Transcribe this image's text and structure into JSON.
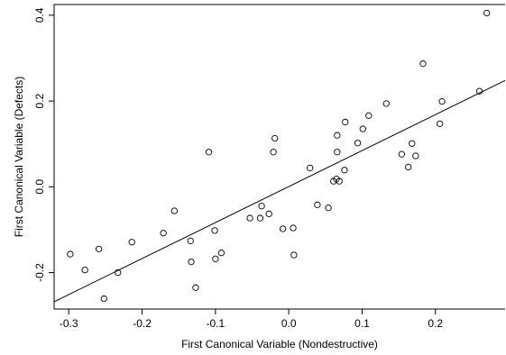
{
  "chart_data": {
    "type": "scatter",
    "title": "",
    "xlabel": "First Canonical Variable (Nondestructive)",
    "ylabel": "First Canonical Variable (Defects)",
    "xlim": [
      -0.32,
      0.295
    ],
    "ylim": [
      -0.285,
      0.425
    ],
    "xticks": [
      -0.3,
      -0.2,
      -0.1,
      0.0,
      0.1,
      0.2
    ],
    "xtick_labels": [
      "-0.3",
      "-0.2",
      "-0.1",
      "0.0",
      "0.1",
      "0.2"
    ],
    "yticks": [
      -0.2,
      0.0,
      0.2,
      0.4
    ],
    "ytick_labels": [
      "-0.2",
      "0.0",
      "0.2",
      "0.4"
    ],
    "grid": false,
    "fit_line": {
      "x": [
        -0.32,
        0.295
      ],
      "y": [
        -0.268,
        0.248
      ]
    },
    "points": [
      {
        "x": -0.298,
        "y": -0.157
      },
      {
        "x": -0.278,
        "y": -0.194
      },
      {
        "x": -0.259,
        "y": -0.145
      },
      {
        "x": -0.252,
        "y": -0.261
      },
      {
        "x": -0.233,
        "y": -0.2
      },
      {
        "x": -0.214,
        "y": -0.129
      },
      {
        "x": -0.171,
        "y": -0.108
      },
      {
        "x": -0.156,
        "y": -0.056
      },
      {
        "x": -0.134,
        "y": -0.126
      },
      {
        "x": -0.133,
        "y": -0.175
      },
      {
        "x": -0.127,
        "y": -0.235
      },
      {
        "x": -0.109,
        "y": 0.081
      },
      {
        "x": -0.101,
        "y": -0.102
      },
      {
        "x": -0.1,
        "y": -0.168
      },
      {
        "x": -0.092,
        "y": -0.154
      },
      {
        "x": -0.053,
        "y": -0.073
      },
      {
        "x": -0.039,
        "y": -0.073
      },
      {
        "x": -0.037,
        "y": -0.045
      },
      {
        "x": -0.027,
        "y": -0.063
      },
      {
        "x": -0.021,
        "y": 0.081
      },
      {
        "x": -0.019,
        "y": 0.113
      },
      {
        "x": -0.008,
        "y": -0.098
      },
      {
        "x": 0.006,
        "y": -0.096
      },
      {
        "x": 0.007,
        "y": -0.159
      },
      {
        "x": 0.029,
        "y": 0.044
      },
      {
        "x": 0.039,
        "y": -0.042
      },
      {
        "x": 0.054,
        "y": -0.049
      },
      {
        "x": 0.061,
        "y": 0.013
      },
      {
        "x": 0.065,
        "y": 0.018
      },
      {
        "x": 0.066,
        "y": 0.081
      },
      {
        "x": 0.066,
        "y": 0.12
      },
      {
        "x": 0.069,
        "y": 0.013
      },
      {
        "x": 0.076,
        "y": 0.039
      },
      {
        "x": 0.077,
        "y": 0.151
      },
      {
        "x": 0.094,
        "y": 0.102
      },
      {
        "x": 0.101,
        "y": 0.135
      },
      {
        "x": 0.109,
        "y": 0.166
      },
      {
        "x": 0.133,
        "y": 0.194
      },
      {
        "x": 0.154,
        "y": 0.076
      },
      {
        "x": 0.163,
        "y": 0.046
      },
      {
        "x": 0.168,
        "y": 0.101
      },
      {
        "x": 0.173,
        "y": 0.072
      },
      {
        "x": 0.183,
        "y": 0.287
      },
      {
        "x": 0.206,
        "y": 0.147
      },
      {
        "x": 0.209,
        "y": 0.199
      },
      {
        "x": 0.26,
        "y": 0.223
      },
      {
        "x": 0.27,
        "y": 0.405
      }
    ]
  }
}
